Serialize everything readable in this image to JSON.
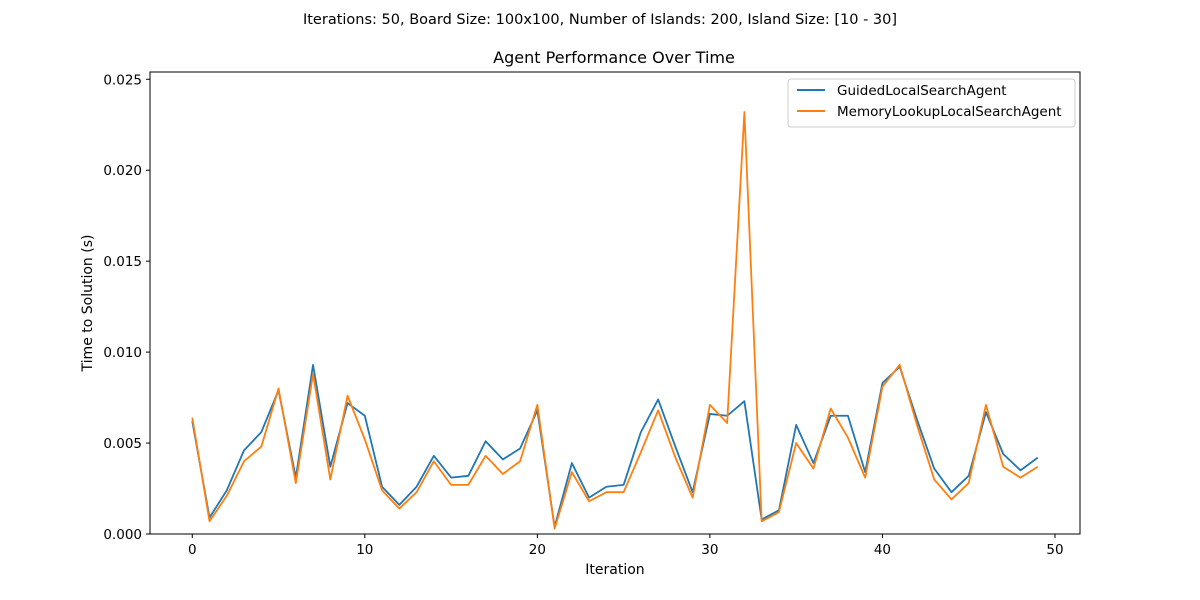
{
  "suptitle": "Iterations: 50, Board Size: 100x100, Number of Islands: 200, Island Size: [10 - 30]",
  "chart_data": {
    "type": "line",
    "title": "Agent Performance Over Time",
    "xlabel": "Iteration",
    "ylabel": "Time to Solution (s)",
    "xlim": [
      -2.45,
      51.45
    ],
    "ylim": [
      0,
      0.0254
    ],
    "xticks": [
      0,
      10,
      20,
      30,
      40,
      50
    ],
    "xtick_labels": [
      "0",
      "10",
      "20",
      "30",
      "40",
      "50"
    ],
    "yticks": [
      0,
      0.005,
      0.01,
      0.015,
      0.02,
      0.025
    ],
    "ytick_labels": [
      "0.000",
      "0.005",
      "0.010",
      "0.015",
      "0.020",
      "0.025"
    ],
    "grid": false,
    "legend_position": "top-right",
    "x": [
      0,
      1,
      2,
      3,
      4,
      5,
      6,
      7,
      8,
      9,
      10,
      11,
      12,
      13,
      14,
      15,
      16,
      17,
      18,
      19,
      20,
      21,
      22,
      23,
      24,
      25,
      26,
      27,
      28,
      29,
      30,
      31,
      32,
      33,
      34,
      35,
      36,
      37,
      38,
      39,
      40,
      41,
      42,
      43,
      44,
      45,
      46,
      47,
      48,
      49
    ],
    "series": [
      {
        "name": "GuidedLocalSearchAgent",
        "color": "#1f77b4",
        "values": [
          0.0062,
          0.0009,
          0.0024,
          0.0046,
          0.0056,
          0.0079,
          0.0031,
          0.0093,
          0.0037,
          0.0072,
          0.0065,
          0.0026,
          0.0016,
          0.0026,
          0.0043,
          0.0031,
          0.0032,
          0.0051,
          0.0041,
          0.0047,
          0.0068,
          0.0004,
          0.0039,
          0.002,
          0.0026,
          0.0027,
          0.0056,
          0.0074,
          0.0048,
          0.0023,
          0.0066,
          0.0065,
          0.0073,
          0.0008,
          0.0013,
          0.006,
          0.0039,
          0.0065,
          0.0065,
          0.0034,
          0.0083,
          0.0092,
          0.0063,
          0.0036,
          0.0023,
          0.0032,
          0.0067,
          0.0044,
          0.0035,
          0.0042
        ]
      },
      {
        "name": "MemoryLookupLocalSearchAgent",
        "color": "#ff7f0e",
        "values": [
          0.0064,
          0.0007,
          0.0021,
          0.004,
          0.0048,
          0.008,
          0.0028,
          0.0088,
          0.003,
          0.0076,
          0.0052,
          0.0024,
          0.0014,
          0.0023,
          0.004,
          0.0027,
          0.0027,
          0.0043,
          0.0033,
          0.004,
          0.0071,
          0.0003,
          0.0034,
          0.0018,
          0.0023,
          0.0023,
          0.0045,
          0.0068,
          0.0042,
          0.002,
          0.0071,
          0.0061,
          0.0232,
          0.0007,
          0.0012,
          0.005,
          0.0036,
          0.0069,
          0.0053,
          0.0031,
          0.0081,
          0.0093,
          0.006,
          0.003,
          0.0019,
          0.0028,
          0.0071,
          0.0037,
          0.0031,
          0.0037
        ]
      }
    ]
  }
}
